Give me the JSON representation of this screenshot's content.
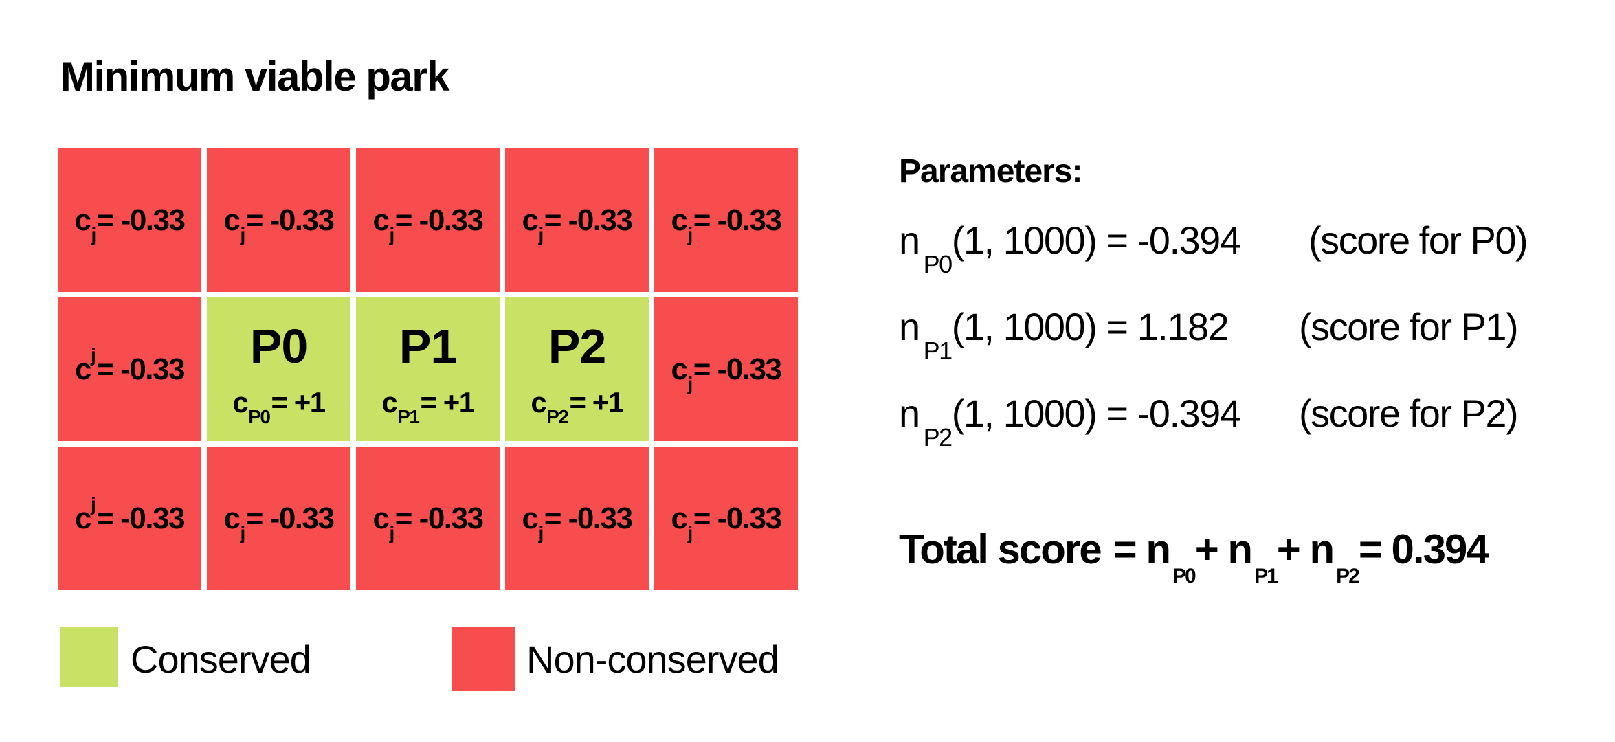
{
  "title": "Minimum viable park",
  "grid": {
    "row1": [
      {
        "c": "c",
        "sub": "j",
        "eq": "= -0.33"
      },
      {
        "c": "c",
        "sub": "j",
        "eq": "= -0.33"
      },
      {
        "c": "c",
        "sub": "j",
        "eq": "= -0.33"
      },
      {
        "c": "c",
        "sub": "j",
        "eq": "= -0.33"
      },
      {
        "c": "c",
        "sub": "j",
        "eq": "= -0.33"
      }
    ],
    "row2_left": {
      "c": "c",
      "sup": "j",
      "eq": "= -0.33"
    },
    "row2_right": {
      "c": "c",
      "sub": "j",
      "eq": "= -0.33"
    },
    "parks": [
      {
        "label": "P0",
        "c": "c",
        "sub": "P0",
        "eq": "= +1"
      },
      {
        "label": "P1",
        "c": "c",
        "sub": "P1",
        "eq": "= +1"
      },
      {
        "label": "P2",
        "c": "c",
        "sub": "P2",
        "eq": "= +1"
      }
    ],
    "row3": [
      {
        "c": "c",
        "sup": "j",
        "eq": "= -0.33"
      },
      {
        "c": "c",
        "sub": "j",
        "eq": "= -0.33"
      },
      {
        "c": "c",
        "sub": "j",
        "eq": "= -0.33"
      },
      {
        "c": "c",
        "sub": "j",
        "eq": "= -0.33"
      },
      {
        "c": "c",
        "sub": "j",
        "eq": "= -0.33"
      }
    ]
  },
  "legend": {
    "conserved": "Conserved",
    "non_conserved": "Non-conserved"
  },
  "parameters": {
    "title": "Parameters:",
    "items": [
      {
        "n": "n",
        "sub": "P0",
        "expr": "(1, 1000) = -0.394",
        "desc": "(score for P0)"
      },
      {
        "n": "n",
        "sub": "P1",
        "expr": "(1, 1000) = 1.182",
        "desc": "(score for P1)"
      },
      {
        "n": "n",
        "sub": "P2",
        "expr": "(1, 1000) = -0.394",
        "desc": "(score for P2)"
      }
    ]
  },
  "total": {
    "label": "Total score",
    "eq1": "= n",
    "sub1": "P0",
    "plus1": "+ n",
    "sub2": "P1",
    "plus2": "+  n",
    "sub3": "P2",
    "result": "= 0.394"
  },
  "colors": {
    "conserved": "#c9e266",
    "non_conserved": "#f74d4e"
  }
}
